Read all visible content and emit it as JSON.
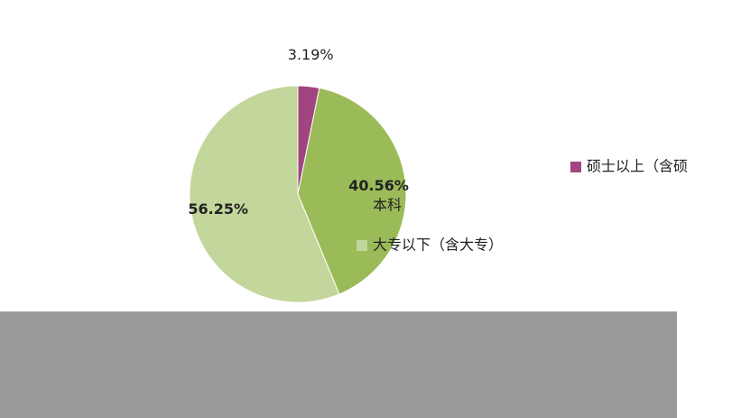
{
  "chart_data": {
    "type": "pie",
    "categories": [
      "硕士以上（含硕",
      "本科",
      "大专以下（含大专）"
    ],
    "values": [
      3.19,
      40.56,
      56.25
    ],
    "value_labels": [
      "3.19%",
      "40.56%",
      "56.25%"
    ],
    "colors": [
      "#a0457f",
      "#9bbb59",
      "#c3d69b"
    ]
  }
}
